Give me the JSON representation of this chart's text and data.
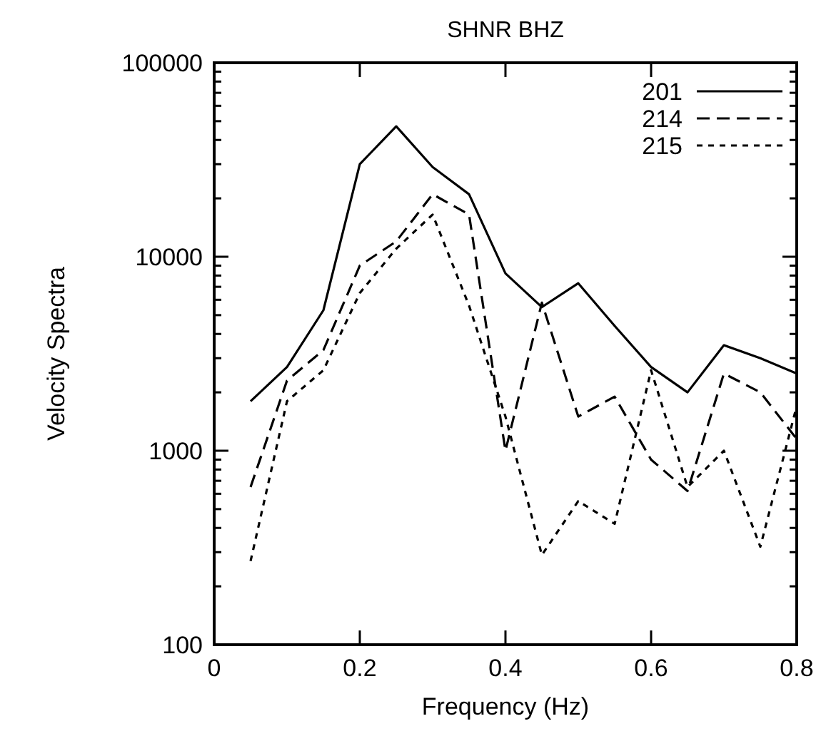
{
  "chart_data": {
    "type": "line",
    "title": "SHNR BHZ",
    "xlabel": "Frequency (Hz)",
    "ylabel": "Velocity Spectra",
    "log": "y",
    "legend": "top right",
    "grid": false,
    "x": [
      0.05,
      0.1,
      0.15,
      0.2,
      0.25,
      0.3,
      0.35,
      0.4,
      0.45,
      0.5,
      0.55,
      0.6,
      0.65,
      0.7,
      0.75,
      0.8
    ],
    "xlim": [
      0,
      0.8
    ],
    "xticks": [
      0,
      0.2,
      0.4,
      0.6,
      0.8
    ],
    "ylim": [
      100,
      100000
    ],
    "yticks": [
      100,
      {
        "value": 200,
        "label": null
      },
      {
        "value": 300,
        "label": null
      },
      {
        "value": 400,
        "label": null
      },
      {
        "value": 500,
        "label": null
      },
      {
        "value": 600,
        "label": null
      },
      {
        "value": 700,
        "label": null
      },
      {
        "value": 800,
        "label": null
      },
      {
        "value": 900,
        "label": null
      },
      1000,
      {
        "value": 2000,
        "label": null
      },
      {
        "value": 3000,
        "label": null
      },
      {
        "value": 4000,
        "label": null
      },
      {
        "value": 5000,
        "label": null
      },
      {
        "value": 6000,
        "label": null
      },
      {
        "value": 7000,
        "label": null
      },
      {
        "value": 8000,
        "label": null
      },
      {
        "value": 9000,
        "label": null
      },
      10000,
      {
        "value": 20000,
        "label": null
      },
      {
        "value": 30000,
        "label": null
      },
      {
        "value": 40000,
        "label": null
      },
      {
        "value": 50000,
        "label": null
      },
      {
        "value": 60000,
        "label": null
      },
      {
        "value": 70000,
        "label": null
      },
      {
        "value": 80000,
        "label": null
      },
      {
        "value": 90000,
        "label": null
      },
      100000
    ],
    "series": [
      {
        "name": "201",
        "color": "#000000",
        "line_style": "solid",
        "values": [
          1800,
          2700,
          5300,
          30000,
          47000,
          29000,
          21000,
          8200,
          5500,
          7300,
          4400,
          2700,
          2000,
          3500,
          3000,
          2500
        ]
      },
      {
        "name": "214",
        "color": "#000000",
        "line_style": "dashed",
        "values": [
          650,
          2300,
          3300,
          9000,
          12000,
          21000,
          16500,
          1000,
          5800,
          1500,
          1900,
          900,
          620,
          2500,
          2000,
          1150
        ]
      },
      {
        "name": "215",
        "color": "#000000",
        "line_style": "dotted",
        "values": [
          270,
          1800,
          2600,
          6500,
          11000,
          16500,
          5600,
          1500,
          290,
          550,
          420,
          2600,
          650,
          1000,
          320,
          1700
        ]
      }
    ]
  }
}
